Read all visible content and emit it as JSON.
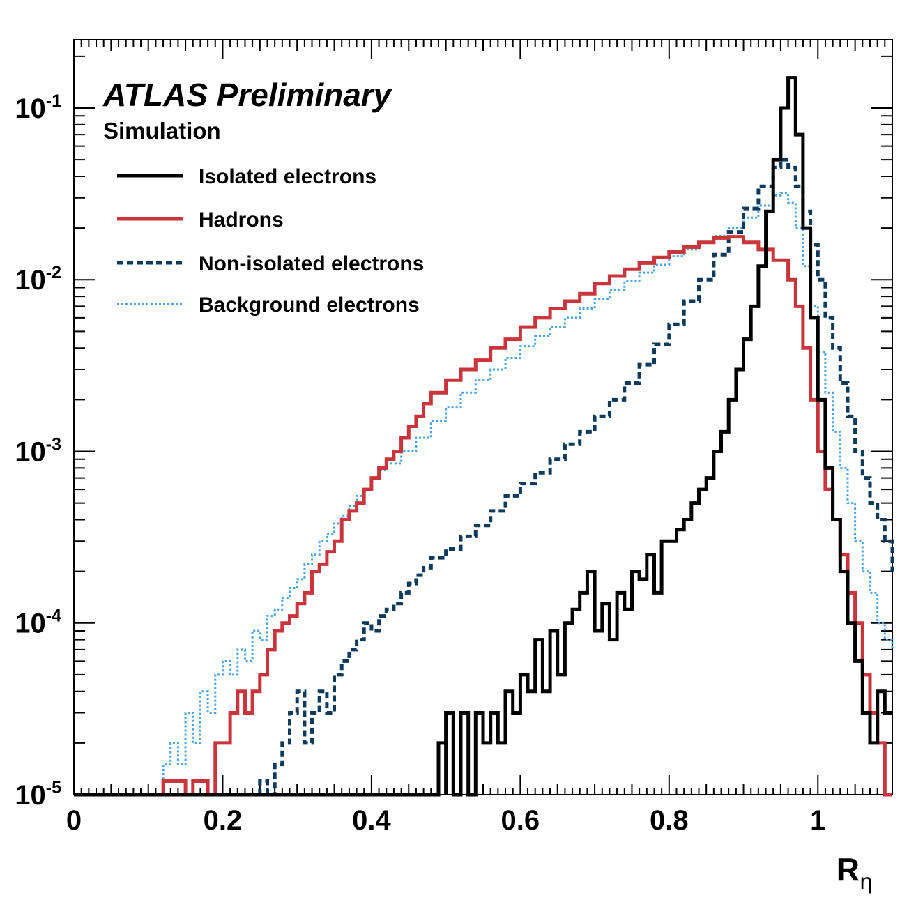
{
  "annotations": {
    "experiment": "ATLAS Preliminary",
    "subtitle": "Simulation"
  },
  "colors": {
    "isolated": "#000000",
    "hadrons": "#c8353b",
    "nonisolated": "#0e3a5c",
    "background": "#4aa3e8"
  },
  "chart_data": {
    "type": "line",
    "subtype": "step-histogram",
    "xlabel_main": "R",
    "xlabel_sub": "η",
    "ylabel": "",
    "xlim": [
      0,
      1.1
    ],
    "ylim": [
      1e-05,
      0.25
    ],
    "yscale": "log",
    "grid": false,
    "legend_position": "top-left",
    "x_ticks": [
      "0",
      "0.2",
      "0.4",
      "0.6",
      "0.8",
      "1"
    ],
    "y_ticks": [
      {
        "base": "10",
        "exp": "-1"
      },
      {
        "base": "10",
        "exp": "-2"
      },
      {
        "base": "10",
        "exp": "-3"
      },
      {
        "base": "10",
        "exp": "-4"
      },
      {
        "base": "10",
        "exp": "-5"
      }
    ],
    "series": [
      {
        "name": "Isolated electrons",
        "style": "solid",
        "points": [
          [
            0.0,
            1e-05
          ],
          [
            0.4,
            1e-05
          ],
          [
            0.4,
            1e-05
          ],
          [
            0.44,
            1e-05
          ],
          [
            0.46,
            1e-05
          ],
          [
            0.48,
            1e-05
          ],
          [
            0.49,
            2e-05
          ],
          [
            0.5,
            1e-05
          ],
          [
            0.5,
            3e-05
          ],
          [
            0.51,
            1e-05
          ],
          [
            0.52,
            3e-05
          ],
          [
            0.53,
            1e-05
          ],
          [
            0.54,
            3e-05
          ],
          [
            0.55,
            2e-05
          ],
          [
            0.56,
            3e-05
          ],
          [
            0.57,
            2e-05
          ],
          [
            0.58,
            4e-05
          ],
          [
            0.59,
            3e-05
          ],
          [
            0.6,
            5e-05
          ],
          [
            0.61,
            4e-05
          ],
          [
            0.62,
            8e-05
          ],
          [
            0.63,
            4e-05
          ],
          [
            0.64,
            9e-05
          ],
          [
            0.65,
            5e-05
          ],
          [
            0.66,
            0.0001
          ],
          [
            0.67,
            0.00012
          ],
          [
            0.68,
            0.00015
          ],
          [
            0.69,
            0.0002
          ],
          [
            0.7,
            9e-05
          ],
          [
            0.71,
            0.00013
          ],
          [
            0.72,
            8e-05
          ],
          [
            0.73,
            0.00015
          ],
          [
            0.74,
            0.00012
          ],
          [
            0.75,
            0.0002
          ],
          [
            0.76,
            0.00018
          ],
          [
            0.77,
            0.00025
          ],
          [
            0.78,
            0.00015
          ],
          [
            0.79,
            0.0003
          ],
          [
            0.8,
            0.0003
          ],
          [
            0.81,
            0.00035
          ],
          [
            0.82,
            0.0004
          ],
          [
            0.83,
            0.0005
          ],
          [
            0.84,
            0.0006
          ],
          [
            0.85,
            0.0007
          ],
          [
            0.86,
            0.001
          ],
          [
            0.87,
            0.0013
          ],
          [
            0.88,
            0.002
          ],
          [
            0.89,
            0.003
          ],
          [
            0.9,
            0.0045
          ],
          [
            0.91,
            0.007
          ],
          [
            0.92,
            0.012
          ],
          [
            0.93,
            0.025
          ],
          [
            0.94,
            0.05
          ],
          [
            0.95,
            0.1
          ],
          [
            0.96,
            0.15
          ],
          [
            0.97,
            0.07
          ],
          [
            0.98,
            0.02
          ],
          [
            0.99,
            0.006
          ],
          [
            1.0,
            0.002
          ],
          [
            1.01,
            0.0008
          ],
          [
            1.02,
            0.0004
          ],
          [
            1.03,
            0.0002
          ],
          [
            1.04,
            0.0001
          ],
          [
            1.05,
            6e-05
          ],
          [
            1.06,
            3e-05
          ],
          [
            1.07,
            2e-05
          ],
          [
            1.08,
            4e-05
          ],
          [
            1.09,
            3e-05
          ],
          [
            1.1,
            3e-05
          ]
        ]
      },
      {
        "name": "Hadrons",
        "style": "solid",
        "points": [
          [
            0.0,
            1e-05
          ],
          [
            0.11,
            1e-05
          ],
          [
            0.12,
            1.2e-05
          ],
          [
            0.15,
            1e-05
          ],
          [
            0.16,
            1.2e-05
          ],
          [
            0.18,
            1e-05
          ],
          [
            0.19,
            2e-05
          ],
          [
            0.2,
            2e-05
          ],
          [
            0.21,
            3e-05
          ],
          [
            0.22,
            4e-05
          ],
          [
            0.23,
            3e-05
          ],
          [
            0.24,
            4e-05
          ],
          [
            0.25,
            5e-05
          ],
          [
            0.26,
            7e-05
          ],
          [
            0.27,
            9e-05
          ],
          [
            0.28,
            0.0001
          ],
          [
            0.29,
            0.00011
          ],
          [
            0.3,
            0.00013
          ],
          [
            0.31,
            0.00015
          ],
          [
            0.32,
            0.0002
          ],
          [
            0.33,
            0.00022
          ],
          [
            0.34,
            0.00026
          ],
          [
            0.35,
            0.0003
          ],
          [
            0.36,
            0.0004
          ],
          [
            0.37,
            0.00045
          ],
          [
            0.38,
            0.0005
          ],
          [
            0.39,
            0.0006
          ],
          [
            0.4,
            0.0007
          ],
          [
            0.41,
            0.0008
          ],
          [
            0.42,
            0.0009
          ],
          [
            0.43,
            0.001
          ],
          [
            0.44,
            0.0012
          ],
          [
            0.45,
            0.0014
          ],
          [
            0.46,
            0.0016
          ],
          [
            0.47,
            0.0019
          ],
          [
            0.48,
            0.0022
          ],
          [
            0.5,
            0.0026
          ],
          [
            0.52,
            0.003
          ],
          [
            0.54,
            0.0034
          ],
          [
            0.56,
            0.004
          ],
          [
            0.58,
            0.0045
          ],
          [
            0.6,
            0.0053
          ],
          [
            0.62,
            0.006
          ],
          [
            0.64,
            0.0068
          ],
          [
            0.66,
            0.0075
          ],
          [
            0.68,
            0.0083
          ],
          [
            0.7,
            0.0095
          ],
          [
            0.72,
            0.0105
          ],
          [
            0.74,
            0.0115
          ],
          [
            0.76,
            0.0125
          ],
          [
            0.78,
            0.0135
          ],
          [
            0.8,
            0.0145
          ],
          [
            0.82,
            0.0155
          ],
          [
            0.84,
            0.0165
          ],
          [
            0.86,
            0.0175
          ],
          [
            0.88,
            0.0178
          ],
          [
            0.9,
            0.0165
          ],
          [
            0.92,
            0.015
          ],
          [
            0.94,
            0.013
          ],
          [
            0.96,
            0.01
          ],
          [
            0.97,
            0.007
          ],
          [
            0.98,
            0.004
          ],
          [
            0.99,
            0.002
          ],
          [
            1.0,
            0.001
          ],
          [
            1.01,
            0.0006
          ],
          [
            1.02,
            0.0004
          ],
          [
            1.03,
            0.00025
          ],
          [
            1.04,
            0.00015
          ],
          [
            1.05,
            0.0001
          ],
          [
            1.06,
            5e-05
          ],
          [
            1.07,
            3e-05
          ],
          [
            1.08,
            2e-05
          ],
          [
            1.09,
            1e-05
          ],
          [
            1.1,
            1e-05
          ]
        ]
      },
      {
        "name": "Non-isolated electrons",
        "style": "dashed",
        "points": [
          [
            0.0,
            1e-05
          ],
          [
            0.24,
            1e-05
          ],
          [
            0.25,
            1.2e-05
          ],
          [
            0.26,
            1e-05
          ],
          [
            0.27,
            1.5e-05
          ],
          [
            0.28,
            2e-05
          ],
          [
            0.29,
            3e-05
          ],
          [
            0.3,
            4e-05
          ],
          [
            0.31,
            2e-05
          ],
          [
            0.32,
            3e-05
          ],
          [
            0.33,
            4e-05
          ],
          [
            0.34,
            3e-05
          ],
          [
            0.35,
            5e-05
          ],
          [
            0.36,
            6e-05
          ],
          [
            0.37,
            7e-05
          ],
          [
            0.38,
            8e-05
          ],
          [
            0.39,
            0.0001
          ],
          [
            0.4,
            9e-05
          ],
          [
            0.41,
            0.00011
          ],
          [
            0.42,
            0.00012
          ],
          [
            0.43,
            0.00013
          ],
          [
            0.44,
            0.00015
          ],
          [
            0.45,
            0.00017
          ],
          [
            0.46,
            0.00019
          ],
          [
            0.47,
            0.00021
          ],
          [
            0.48,
            0.00024
          ],
          [
            0.5,
            0.00027
          ],
          [
            0.52,
            0.00032
          ],
          [
            0.54,
            0.00037
          ],
          [
            0.56,
            0.00045
          ],
          [
            0.58,
            0.00055
          ],
          [
            0.6,
            0.00065
          ],
          [
            0.62,
            0.00075
          ],
          [
            0.64,
            0.0009
          ],
          [
            0.66,
            0.0011
          ],
          [
            0.68,
            0.0013
          ],
          [
            0.7,
            0.0016
          ],
          [
            0.72,
            0.002
          ],
          [
            0.74,
            0.0025
          ],
          [
            0.76,
            0.0032
          ],
          [
            0.78,
            0.0042
          ],
          [
            0.8,
            0.0055
          ],
          [
            0.82,
            0.0075
          ],
          [
            0.84,
            0.01
          ],
          [
            0.86,
            0.014
          ],
          [
            0.88,
            0.019
          ],
          [
            0.9,
            0.026
          ],
          [
            0.92,
            0.035
          ],
          [
            0.94,
            0.045
          ],
          [
            0.95,
            0.05
          ],
          [
            0.96,
            0.045
          ],
          [
            0.97,
            0.035
          ],
          [
            0.98,
            0.025
          ],
          [
            0.99,
            0.016
          ],
          [
            1.0,
            0.01
          ],
          [
            1.01,
            0.006
          ],
          [
            1.02,
            0.004
          ],
          [
            1.03,
            0.0025
          ],
          [
            1.04,
            0.0016
          ],
          [
            1.05,
            0.001
          ],
          [
            1.06,
            0.0007
          ],
          [
            1.07,
            0.0005
          ],
          [
            1.08,
            0.0004
          ],
          [
            1.09,
            0.0003
          ],
          [
            1.1,
            0.0002
          ]
        ]
      },
      {
        "name": "Background electrons",
        "style": "dotted",
        "points": [
          [
            0.0,
            1e-05
          ],
          [
            0.11,
            1e-05
          ],
          [
            0.12,
            1.5e-05
          ],
          [
            0.13,
            2e-05
          ],
          [
            0.14,
            1.5e-05
          ],
          [
            0.15,
            3e-05
          ],
          [
            0.16,
            2e-05
          ],
          [
            0.17,
            4e-05
          ],
          [
            0.18,
            3e-05
          ],
          [
            0.19,
            5e-05
          ],
          [
            0.2,
            6e-05
          ],
          [
            0.21,
            5e-05
          ],
          [
            0.22,
            7e-05
          ],
          [
            0.23,
            6e-05
          ],
          [
            0.24,
            9e-05
          ],
          [
            0.25,
            8e-05
          ],
          [
            0.26,
            0.00011
          ],
          [
            0.27,
            0.00012
          ],
          [
            0.28,
            0.00014
          ],
          [
            0.29,
            0.00016
          ],
          [
            0.3,
            0.00018
          ],
          [
            0.31,
            0.00022
          ],
          [
            0.32,
            0.00025
          ],
          [
            0.33,
            0.0003
          ],
          [
            0.34,
            0.00033
          ],
          [
            0.35,
            0.00038
          ],
          [
            0.36,
            0.00042
          ],
          [
            0.37,
            0.00048
          ],
          [
            0.38,
            0.00055
          ],
          [
            0.39,
            0.0006
          ],
          [
            0.4,
            0.0007
          ],
          [
            0.41,
            0.00078
          ],
          [
            0.42,
            0.00085
          ],
          [
            0.44,
            0.001
          ],
          [
            0.46,
            0.0012
          ],
          [
            0.48,
            0.0015
          ],
          [
            0.5,
            0.0018
          ],
          [
            0.52,
            0.0022
          ],
          [
            0.54,
            0.0026
          ],
          [
            0.56,
            0.003
          ],
          [
            0.58,
            0.0035
          ],
          [
            0.6,
            0.0041
          ],
          [
            0.62,
            0.0047
          ],
          [
            0.64,
            0.0053
          ],
          [
            0.66,
            0.006
          ],
          [
            0.68,
            0.0068
          ],
          [
            0.7,
            0.0077
          ],
          [
            0.72,
            0.0087
          ],
          [
            0.74,
            0.0098
          ],
          [
            0.76,
            0.011
          ],
          [
            0.78,
            0.0122
          ],
          [
            0.8,
            0.0137
          ],
          [
            0.82,
            0.015
          ],
          [
            0.84,
            0.0165
          ],
          [
            0.86,
            0.018
          ],
          [
            0.88,
            0.02
          ],
          [
            0.9,
            0.023
          ],
          [
            0.92,
            0.027
          ],
          [
            0.94,
            0.031
          ],
          [
            0.95,
            0.032
          ],
          [
            0.96,
            0.028
          ],
          [
            0.97,
            0.02
          ],
          [
            0.98,
            0.012
          ],
          [
            0.99,
            0.007
          ],
          [
            1.0,
            0.0038
          ],
          [
            1.01,
            0.0022
          ],
          [
            1.02,
            0.0013
          ],
          [
            1.03,
            0.0008
          ],
          [
            1.04,
            0.0005
          ],
          [
            1.05,
            0.0003
          ],
          [
            1.06,
            0.0002
          ],
          [
            1.07,
            0.00015
          ],
          [
            1.08,
            0.0001
          ],
          [
            1.09,
            8e-05
          ],
          [
            1.1,
            7e-05
          ]
        ]
      }
    ]
  }
}
